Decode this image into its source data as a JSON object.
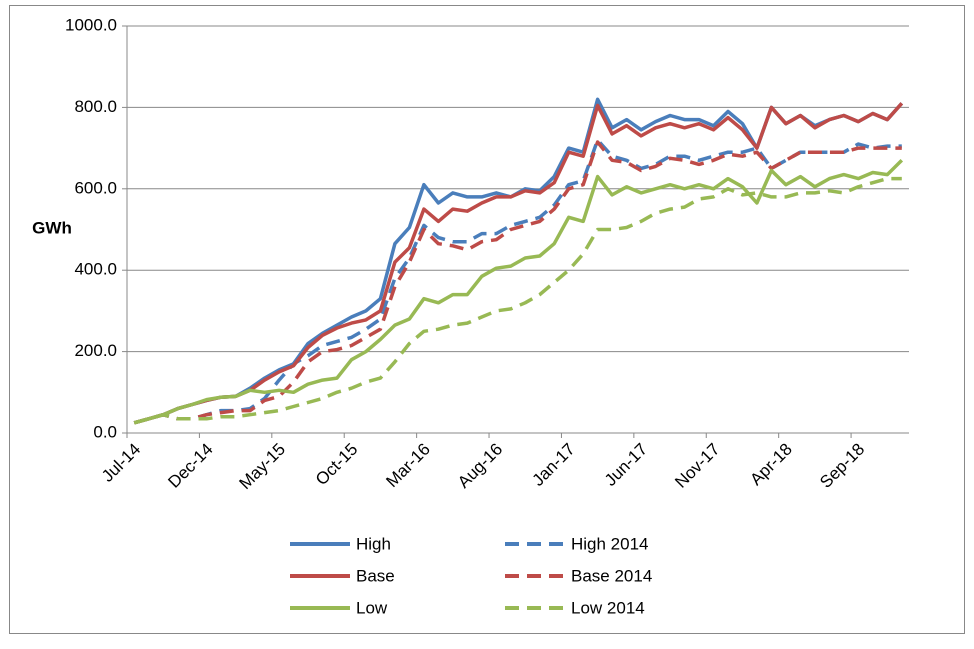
{
  "chart_data": {
    "type": "line",
    "y_label": "GWh",
    "categories": [
      "Jul-14",
      null,
      null,
      null,
      null,
      "Dec-14",
      null,
      null,
      null,
      null,
      "May-15",
      null,
      null,
      null,
      null,
      "Oct-15",
      null,
      null,
      null,
      null,
      "Mar-16",
      null,
      null,
      null,
      null,
      "Aug-16",
      null,
      null,
      null,
      null,
      "Jan-17",
      null,
      null,
      null,
      null,
      "Jun-17",
      null,
      null,
      null,
      null,
      "Nov-17",
      null,
      null,
      null,
      null,
      "Apr-18",
      null,
      null,
      null,
      null,
      "Sep-18",
      null,
      null,
      null
    ],
    "ylim": [
      0,
      1000
    ],
    "yticks": [
      {
        "value": 0,
        "label": "0.0"
      },
      {
        "value": 200,
        "label": "200.0"
      },
      {
        "value": 400,
        "label": "400.0"
      },
      {
        "value": 600,
        "label": "600.0"
      },
      {
        "value": 800,
        "label": "800.0"
      },
      {
        "value": 1000,
        "label": "1000.0"
      }
    ],
    "grid": true,
    "series": [
      {
        "name": "High",
        "color": "#4a7ebb",
        "dashed": false,
        "values": [
          25,
          35,
          45,
          60,
          70,
          80,
          88,
          90,
          110,
          135,
          155,
          170,
          220,
          245,
          265,
          285,
          300,
          330,
          465,
          505,
          610,
          565,
          590,
          580,
          580,
          590,
          580,
          600,
          595,
          630,
          700,
          690,
          820,
          750,
          770,
          745,
          765,
          780,
          770,
          770,
          755,
          790,
          760,
          700,
          800,
          760,
          780,
          755,
          770,
          780,
          765,
          785,
          770,
          810
        ]
      },
      {
        "name": "High 2014",
        "color": "#4a7ebb",
        "dashed": true,
        "values": [
          25,
          35,
          45,
          35,
          35,
          45,
          55,
          55,
          60,
          85,
          130,
          170,
          190,
          215,
          225,
          235,
          255,
          280,
          380,
          430,
          510,
          480,
          470,
          470,
          490,
          490,
          510,
          520,
          530,
          560,
          610,
          620,
          720,
          680,
          670,
          650,
          660,
          680,
          680,
          670,
          680,
          690,
          690,
          700,
          650,
          670,
          690,
          690,
          690,
          690,
          710,
          700,
          705,
          705
        ]
      },
      {
        "name": "Base",
        "color": "#be4b48",
        "dashed": false,
        "values": [
          25,
          35,
          45,
          60,
          70,
          80,
          88,
          90,
          105,
          130,
          150,
          165,
          210,
          240,
          258,
          270,
          278,
          300,
          420,
          455,
          550,
          520,
          550,
          545,
          565,
          580,
          580,
          595,
          590,
          615,
          690,
          680,
          805,
          735,
          755,
          730,
          750,
          760,
          750,
          760,
          745,
          775,
          745,
          700,
          800,
          760,
          780,
          750,
          770,
          780,
          765,
          785,
          770,
          810
        ]
      },
      {
        "name": "Base 2014",
        "color": "#be4b48",
        "dashed": true,
        "values": [
          25,
          35,
          45,
          35,
          35,
          45,
          50,
          55,
          55,
          80,
          90,
          125,
          175,
          200,
          205,
          215,
          235,
          255,
          360,
          420,
          500,
          465,
          460,
          450,
          470,
          475,
          500,
          510,
          520,
          550,
          600,
          610,
          715,
          670,
          665,
          645,
          655,
          675,
          670,
          660,
          670,
          685,
          680,
          690,
          650,
          670,
          690,
          690,
          690,
          690,
          700,
          700,
          700,
          700
        ]
      },
      {
        "name": "Low",
        "color": "#98b954",
        "dashed": false,
        "values": [
          25,
          35,
          45,
          60,
          70,
          82,
          88,
          90,
          105,
          100,
          105,
          100,
          120,
          130,
          135,
          180,
          200,
          230,
          265,
          280,
          330,
          320,
          340,
          340,
          385,
          405,
          410,
          430,
          435,
          465,
          530,
          520,
          630,
          585,
          605,
          590,
          600,
          610,
          600,
          610,
          600,
          625,
          605,
          565,
          645,
          610,
          630,
          605,
          625,
          635,
          625,
          640,
          635,
          670
        ]
      },
      {
        "name": "Low 2014",
        "color": "#98b954",
        "dashed": true,
        "values": [
          25,
          35,
          45,
          35,
          35,
          35,
          40,
          40,
          45,
          50,
          55,
          65,
          75,
          85,
          100,
          110,
          125,
          135,
          175,
          220,
          250,
          255,
          265,
          270,
          285,
          300,
          305,
          320,
          340,
          370,
          400,
          440,
          500,
          500,
          505,
          520,
          540,
          550,
          555,
          575,
          580,
          600,
          585,
          590,
          580,
          580,
          590,
          590,
          595,
          590,
          605,
          615,
          625,
          625
        ]
      }
    ]
  }
}
